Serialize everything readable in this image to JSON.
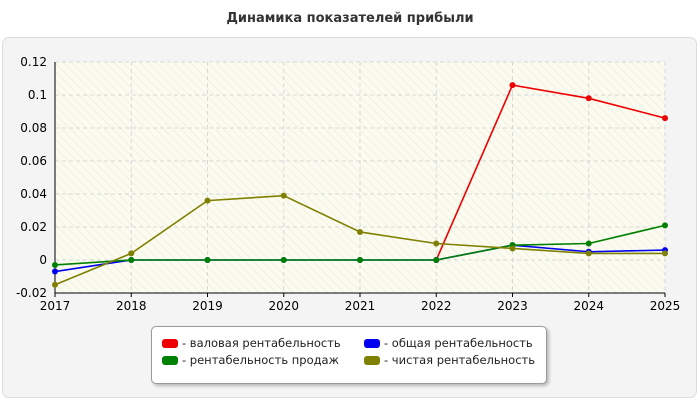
{
  "chart_data": {
    "type": "line",
    "title": "Динамика показателей прибыли",
    "categories": [
      "2017",
      "2018",
      "2019",
      "2020",
      "2021",
      "2022",
      "2023",
      "2024",
      "2025"
    ],
    "yticks": [
      "-0.02",
      "0",
      "0.02",
      "0.04",
      "0.06",
      "0.08",
      "0.1",
      "0.12"
    ],
    "ylim": [
      -0.02,
      0.12
    ],
    "grid": true,
    "legend_position": "bottom",
    "series": [
      {
        "name": "- валовая рентабельность",
        "color": "#ee0000",
        "values": [
          null,
          null,
          null,
          null,
          null,
          0.0,
          0.106,
          0.098,
          0.086
        ]
      },
      {
        "name": "- рентабельность продаж",
        "color": "#008000",
        "values": [
          -0.003,
          0.0,
          0.0,
          0.0,
          0.0,
          0.0,
          0.009,
          0.01,
          0.021
        ]
      },
      {
        "name": "- общая рентабельность",
        "color": "#0000ee",
        "values": [
          -0.007,
          0.0,
          0.0,
          0.0,
          0.0,
          0.0,
          0.009,
          0.005,
          0.006
        ]
      },
      {
        "name": "- чистая рентабельность",
        "color": "#808000",
        "values": [
          -0.015,
          0.004,
          0.036,
          0.039,
          0.017,
          0.01,
          0.007,
          0.004,
          0.004
        ]
      }
    ]
  }
}
